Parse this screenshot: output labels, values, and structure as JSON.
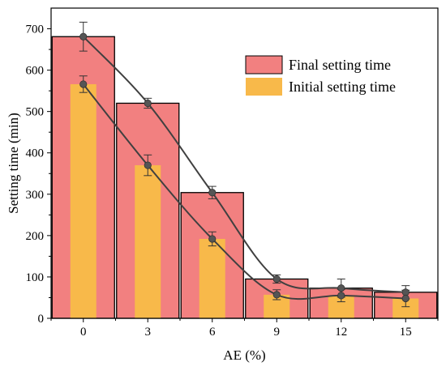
{
  "chart_data": {
    "type": "bar",
    "xlabel": "AE (%)",
    "ylabel": "Setting time (min)",
    "categories": [
      "0",
      "3",
      "6",
      "9",
      "12",
      "15"
    ],
    "ylim": [
      0,
      750
    ],
    "yticks": [
      0,
      100,
      200,
      300,
      400,
      500,
      600,
      700
    ],
    "series": [
      {
        "name": "Final setting time",
        "values": [
          681,
          520,
          304,
          95,
          73,
          63
        ],
        "errors": [
          35,
          12,
          15,
          10,
          22,
          16
        ],
        "color": "#f28080",
        "edge": "#000000"
      },
      {
        "name": "Initial setting time",
        "values": [
          566,
          370,
          192,
          57,
          55,
          48
        ],
        "errors": [
          20,
          25,
          17,
          12,
          15,
          20
        ],
        "color": "#f8b94a",
        "edge": "#f8b94a"
      }
    ],
    "trend_line_color": "#404040",
    "marker_color": "#555555",
    "grid": false,
    "legend_position": "top-right"
  }
}
